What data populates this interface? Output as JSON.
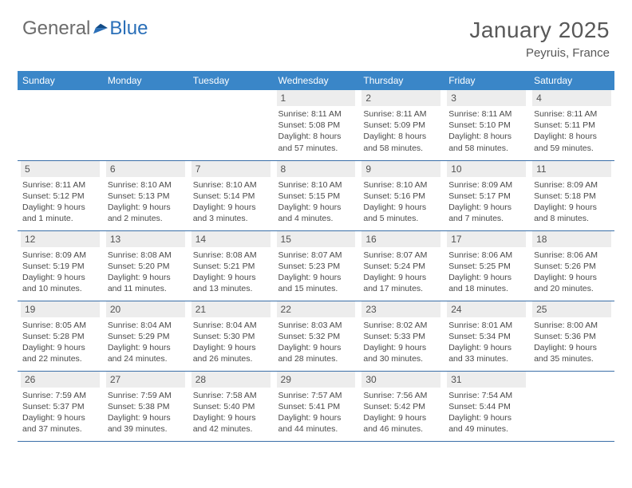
{
  "logo": {
    "text1": "General",
    "text2": "Blue"
  },
  "title": {
    "month_year": "January 2025",
    "location": "Peyruis, France"
  },
  "colors": {
    "header_bg": "#3a86c8",
    "header_text": "#ffffff",
    "daynum_bg": "#ededed",
    "rule": "#3a6fa8",
    "body_text": "#4a4a4a",
    "title_text": "#585858",
    "logo_grey": "#6c6c6c",
    "logo_blue": "#2a6fb8"
  },
  "weekdays": [
    "Sunday",
    "Monday",
    "Tuesday",
    "Wednesday",
    "Thursday",
    "Friday",
    "Saturday"
  ],
  "layout": {
    "cols": 7,
    "rows": 5,
    "pad_start": 3
  },
  "days": [
    {
      "n": 1,
      "sunrise": "8:11 AM",
      "sunset": "5:08 PM",
      "daylight": "8 hours and 57 minutes."
    },
    {
      "n": 2,
      "sunrise": "8:11 AM",
      "sunset": "5:09 PM",
      "daylight": "8 hours and 58 minutes."
    },
    {
      "n": 3,
      "sunrise": "8:11 AM",
      "sunset": "5:10 PM",
      "daylight": "8 hours and 58 minutes."
    },
    {
      "n": 4,
      "sunrise": "8:11 AM",
      "sunset": "5:11 PM",
      "daylight": "8 hours and 59 minutes."
    },
    {
      "n": 5,
      "sunrise": "8:11 AM",
      "sunset": "5:12 PM",
      "daylight": "9 hours and 1 minute."
    },
    {
      "n": 6,
      "sunrise": "8:10 AM",
      "sunset": "5:13 PM",
      "daylight": "9 hours and 2 minutes."
    },
    {
      "n": 7,
      "sunrise": "8:10 AM",
      "sunset": "5:14 PM",
      "daylight": "9 hours and 3 minutes."
    },
    {
      "n": 8,
      "sunrise": "8:10 AM",
      "sunset": "5:15 PM",
      "daylight": "9 hours and 4 minutes."
    },
    {
      "n": 9,
      "sunrise": "8:10 AM",
      "sunset": "5:16 PM",
      "daylight": "9 hours and 5 minutes."
    },
    {
      "n": 10,
      "sunrise": "8:09 AM",
      "sunset": "5:17 PM",
      "daylight": "9 hours and 7 minutes."
    },
    {
      "n": 11,
      "sunrise": "8:09 AM",
      "sunset": "5:18 PM",
      "daylight": "9 hours and 8 minutes."
    },
    {
      "n": 12,
      "sunrise": "8:09 AM",
      "sunset": "5:19 PM",
      "daylight": "9 hours and 10 minutes."
    },
    {
      "n": 13,
      "sunrise": "8:08 AM",
      "sunset": "5:20 PM",
      "daylight": "9 hours and 11 minutes."
    },
    {
      "n": 14,
      "sunrise": "8:08 AM",
      "sunset": "5:21 PM",
      "daylight": "9 hours and 13 minutes."
    },
    {
      "n": 15,
      "sunrise": "8:07 AM",
      "sunset": "5:23 PM",
      "daylight": "9 hours and 15 minutes."
    },
    {
      "n": 16,
      "sunrise": "8:07 AM",
      "sunset": "5:24 PM",
      "daylight": "9 hours and 17 minutes."
    },
    {
      "n": 17,
      "sunrise": "8:06 AM",
      "sunset": "5:25 PM",
      "daylight": "9 hours and 18 minutes."
    },
    {
      "n": 18,
      "sunrise": "8:06 AM",
      "sunset": "5:26 PM",
      "daylight": "9 hours and 20 minutes."
    },
    {
      "n": 19,
      "sunrise": "8:05 AM",
      "sunset": "5:28 PM",
      "daylight": "9 hours and 22 minutes."
    },
    {
      "n": 20,
      "sunrise": "8:04 AM",
      "sunset": "5:29 PM",
      "daylight": "9 hours and 24 minutes."
    },
    {
      "n": 21,
      "sunrise": "8:04 AM",
      "sunset": "5:30 PM",
      "daylight": "9 hours and 26 minutes."
    },
    {
      "n": 22,
      "sunrise": "8:03 AM",
      "sunset": "5:32 PM",
      "daylight": "9 hours and 28 minutes."
    },
    {
      "n": 23,
      "sunrise": "8:02 AM",
      "sunset": "5:33 PM",
      "daylight": "9 hours and 30 minutes."
    },
    {
      "n": 24,
      "sunrise": "8:01 AM",
      "sunset": "5:34 PM",
      "daylight": "9 hours and 33 minutes."
    },
    {
      "n": 25,
      "sunrise": "8:00 AM",
      "sunset": "5:36 PM",
      "daylight": "9 hours and 35 minutes."
    },
    {
      "n": 26,
      "sunrise": "7:59 AM",
      "sunset": "5:37 PM",
      "daylight": "9 hours and 37 minutes."
    },
    {
      "n": 27,
      "sunrise": "7:59 AM",
      "sunset": "5:38 PM",
      "daylight": "9 hours and 39 minutes."
    },
    {
      "n": 28,
      "sunrise": "7:58 AM",
      "sunset": "5:40 PM",
      "daylight": "9 hours and 42 minutes."
    },
    {
      "n": 29,
      "sunrise": "7:57 AM",
      "sunset": "5:41 PM",
      "daylight": "9 hours and 44 minutes."
    },
    {
      "n": 30,
      "sunrise": "7:56 AM",
      "sunset": "5:42 PM",
      "daylight": "9 hours and 46 minutes."
    },
    {
      "n": 31,
      "sunrise": "7:54 AM",
      "sunset": "5:44 PM",
      "daylight": "9 hours and 49 minutes."
    }
  ],
  "labels": {
    "sunrise": "Sunrise:",
    "sunset": "Sunset:",
    "daylight": "Daylight:"
  }
}
